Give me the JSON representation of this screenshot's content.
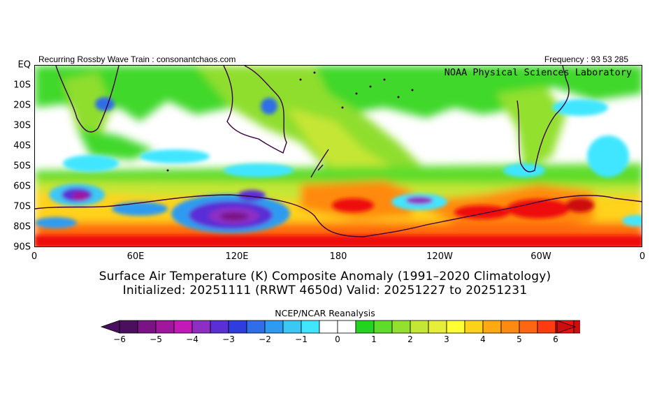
{
  "header": {
    "left": "Recurring Rossby Wave Train : consonantchaos.com",
    "right": "Frequency : 93 53 285"
  },
  "map": {
    "lab_label": "NOAA Physical Sciences Laboratory",
    "y_labels": [
      "EQ",
      "10S",
      "20S",
      "30S",
      "40S",
      "50S",
      "60S",
      "70S",
      "80S",
      "90S"
    ],
    "x_labels": [
      "0",
      "60E",
      "120E",
      "180",
      "120W",
      "60W",
      "0"
    ]
  },
  "titles": {
    "line1": "Surface Air Temperature (K) Composite Anomaly (1991–2020 Climatology)",
    "line2": "Initialized: 20251111 (RRWT 4650d) Valid: 20251227 to 20251231"
  },
  "colorbar": {
    "title": "NCEP/NCAR Reanalysis",
    "labels": [
      "−6",
      "−5",
      "−4",
      "−3",
      "−2",
      "−1",
      "0",
      "1",
      "2",
      "3",
      "4",
      "5",
      "6"
    ],
    "colors": [
      "#4a0f5e",
      "#7a1485",
      "#a0169c",
      "#c21ab8",
      "#8e2fc4",
      "#5a2fd6",
      "#2f3ce0",
      "#2f6ee6",
      "#2f9bf0",
      "#3cc8f5",
      "#40e6ff",
      "#ffffff",
      "#ffffff",
      "#22d41f",
      "#5fdc2a",
      "#93e02e",
      "#c4e634",
      "#e6ee3a",
      "#ffff33",
      "#ffd21a",
      "#ffaa11",
      "#ff8a11",
      "#ff6611",
      "#ff3c11",
      "#ee1111",
      "#cc0e0e"
    ]
  }
}
